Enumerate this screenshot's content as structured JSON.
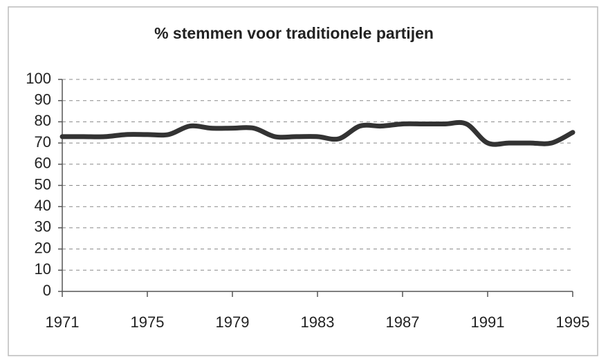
{
  "chart_data": {
    "type": "line",
    "title": "% stemmen voor traditionele partijen",
    "x": [
      1971,
      1972,
      1973,
      1974,
      1975,
      1976,
      1977,
      1978,
      1979,
      1980,
      1981,
      1982,
      1983,
      1984,
      1985,
      1986,
      1987,
      1988,
      1989,
      1990,
      1991,
      1992,
      1993,
      1994,
      1995
    ],
    "series": [
      {
        "name": "% stemmen voor traditionele partijen",
        "color": "#333333",
        "values": [
          73,
          73,
          73,
          74,
          74,
          74,
          78,
          77,
          77,
          77,
          73,
          73,
          73,
          72,
          78,
          78,
          79,
          79,
          79,
          79,
          70,
          70,
          70,
          70,
          75
        ]
      }
    ],
    "xlim": [
      1971,
      1995
    ],
    "xticks": [
      1971,
      1975,
      1979,
      1983,
      1987,
      1991,
      1995
    ],
    "ylim": [
      0,
      100
    ],
    "yticks": [
      0,
      10,
      20,
      30,
      40,
      50,
      60,
      70,
      80,
      90,
      100
    ],
    "grid": true
  }
}
